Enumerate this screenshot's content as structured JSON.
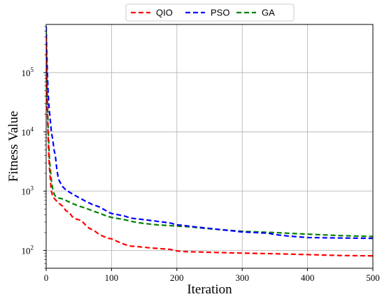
{
  "chart_data": {
    "type": "line",
    "title": "",
    "xlabel": "Iteration",
    "ylabel": "Fitness Value",
    "xlim": [
      0,
      500
    ],
    "ylim": [
      50,
      650000
    ],
    "yscale": "log",
    "grid": true,
    "legend_position": "top-center",
    "x_ticks": [
      0,
      100,
      200,
      300,
      400,
      500
    ],
    "x_tick_labels": [
      "0",
      "100",
      "200",
      "300",
      "400",
      "500"
    ],
    "y_ticks": [
      100,
      1000,
      10000,
      100000
    ],
    "y_tick_labels": [
      {
        "base": "10",
        "exp": "2"
      },
      {
        "base": "10",
        "exp": "3"
      },
      {
        "base": "10",
        "exp": "4"
      },
      {
        "base": "10",
        "exp": "5"
      }
    ],
    "series": [
      {
        "name": "QIO",
        "color": "#ff0000",
        "x": [
          0,
          1,
          2,
          3,
          4,
          5,
          6,
          7,
          8,
          10,
          12,
          15,
          20,
          25,
          30,
          35,
          40,
          45,
          50,
          55,
          60,
          65,
          70,
          75,
          80,
          85,
          90,
          95,
          100,
          110,
          120,
          130,
          140,
          150,
          160,
          170,
          180,
          190,
          200,
          210,
          220,
          250,
          300,
          350,
          400,
          450,
          500
        ],
        "y": [
          400000,
          60000,
          20000,
          8000,
          4000,
          2500,
          1800,
          1300,
          1000,
          820,
          760,
          700,
          620,
          560,
          470,
          440,
          370,
          340,
          330,
          310,
          270,
          240,
          225,
          210,
          190,
          178,
          168,
          160,
          157,
          140,
          126,
          118,
          116,
          113,
          110,
          108,
          106,
          104,
          98,
          96,
          95,
          93,
          90,
          88,
          85,
          82,
          81
        ]
      },
      {
        "name": "PSO",
        "color": "#0000ff",
        "x": [
          0,
          1,
          2,
          3,
          4,
          5,
          6,
          7,
          8,
          10,
          12,
          14,
          16,
          18,
          20,
          25,
          30,
          40,
          50,
          60,
          70,
          80,
          90,
          95,
          100,
          110,
          120,
          130,
          140,
          150,
          160,
          170,
          180,
          190,
          200,
          210,
          220,
          250,
          300,
          340,
          350,
          370,
          400,
          450,
          500
        ],
        "y": [
          600000,
          200000,
          90000,
          45000,
          30000,
          22000,
          17000,
          13000,
          10000,
          7500,
          5000,
          4000,
          2500,
          1800,
          1500,
          1200,
          1050,
          900,
          780,
          680,
          600,
          550,
          480,
          440,
          420,
          400,
          380,
          350,
          340,
          330,
          320,
          310,
          300,
          290,
          270,
          265,
          255,
          235,
          205,
          195,
          185,
          175,
          165,
          162,
          160
        ]
      },
      {
        "name": "GA",
        "color": "#008000",
        "x": [
          0,
          1,
          2,
          3,
          4,
          5,
          6,
          7,
          8,
          10,
          12,
          15,
          20,
          25,
          30,
          40,
          50,
          60,
          70,
          80,
          90,
          100,
          110,
          120,
          130,
          140,
          150,
          170,
          190,
          200,
          220,
          250,
          300,
          350,
          400,
          450,
          500
        ],
        "y": [
          500000,
          100000,
          30000,
          12000,
          6000,
          3500,
          2600,
          2000,
          1500,
          1100,
          900,
          800,
          760,
          740,
          700,
          620,
          560,
          520,
          470,
          430,
          390,
          360,
          345,
          330,
          310,
          295,
          285,
          270,
          262,
          258,
          250,
          232,
          210,
          200,
          188,
          178,
          172
        ]
      }
    ]
  }
}
